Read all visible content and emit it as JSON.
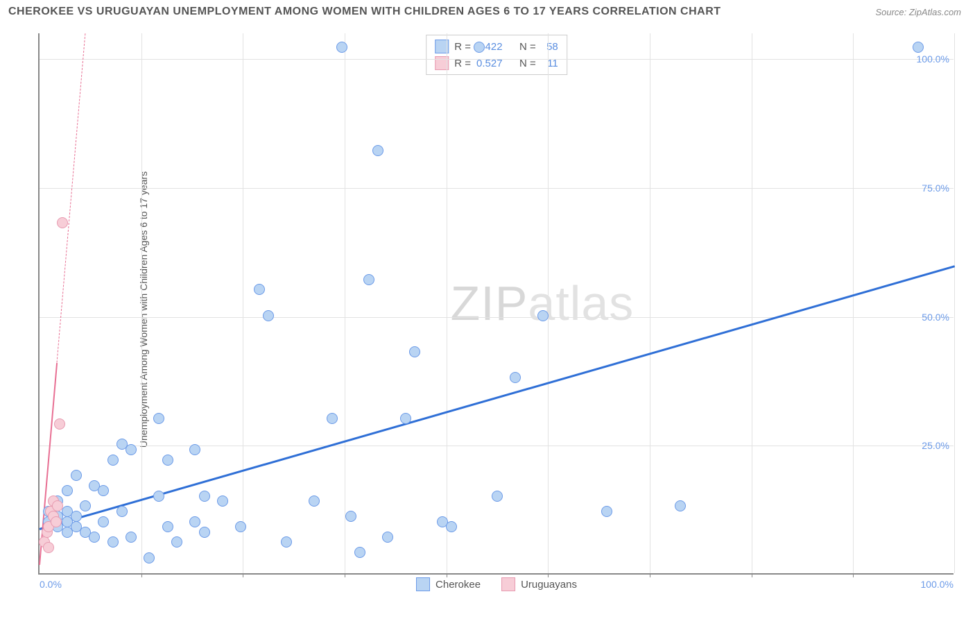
{
  "title": "CHEROKEE VS URUGUAYAN UNEMPLOYMENT AMONG WOMEN WITH CHILDREN AGES 6 TO 17 YEARS CORRELATION CHART",
  "source": "Source: ZipAtlas.com",
  "ylabel": "Unemployment Among Women with Children Ages 6 to 17 years",
  "watermark_bold": "ZIP",
  "watermark_thin": "atlas",
  "chart": {
    "type": "scatter",
    "xlim": [
      0,
      100
    ],
    "ylim": [
      0,
      105
    ],
    "xtick_labels": {
      "min": "0.0%",
      "max": "100.0%"
    },
    "ytick_labels": [
      "25.0%",
      "50.0%",
      "75.0%",
      "100.0%"
    ],
    "ytick_values": [
      25,
      50,
      75,
      100
    ],
    "minor_xticks_count": 8,
    "grid_color": "#e2e2e2",
    "axis_color": "#888888",
    "background": "#ffffff",
    "point_radius": 8,
    "series": [
      {
        "name": "Cherokee",
        "fill": "#b9d4f3",
        "stroke": "#6b9ae8",
        "trend_color": "#2f6fd6",
        "trend_width": 3,
        "trend_dash": "solid",
        "trend": {
          "x1": 0,
          "y1": 9,
          "x2": 100,
          "y2": 60
        },
        "R": "0.422",
        "N": "58",
        "points": [
          [
            1,
            10
          ],
          [
            1,
            12
          ],
          [
            2,
            9
          ],
          [
            2,
            11
          ],
          [
            2,
            14
          ],
          [
            3,
            8
          ],
          [
            3,
            10
          ],
          [
            3,
            12
          ],
          [
            3,
            16
          ],
          [
            4,
            9
          ],
          [
            4,
            11
          ],
          [
            4,
            19
          ],
          [
            5,
            8
          ],
          [
            5,
            13
          ],
          [
            6,
            7
          ],
          [
            6,
            17
          ],
          [
            7,
            10
          ],
          [
            7,
            16
          ],
          [
            8,
            6
          ],
          [
            8,
            22
          ],
          [
            9,
            12
          ],
          [
            9,
            25
          ],
          [
            10,
            7
          ],
          [
            10,
            24
          ],
          [
            12,
            3
          ],
          [
            13,
            15
          ],
          [
            13,
            30
          ],
          [
            14,
            9
          ],
          [
            14,
            22
          ],
          [
            15,
            6
          ],
          [
            17,
            10
          ],
          [
            17,
            24
          ],
          [
            18,
            8
          ],
          [
            18,
            15
          ],
          [
            20,
            14
          ],
          [
            22,
            9
          ],
          [
            24,
            55
          ],
          [
            25,
            50
          ],
          [
            27,
            6
          ],
          [
            30,
            14
          ],
          [
            32,
            30
          ],
          [
            33,
            102
          ],
          [
            34,
            11
          ],
          [
            35,
            4
          ],
          [
            36,
            57
          ],
          [
            37,
            82
          ],
          [
            38,
            7
          ],
          [
            40,
            30
          ],
          [
            41,
            43
          ],
          [
            44,
            10
          ],
          [
            45,
            9
          ],
          [
            48,
            102
          ],
          [
            50,
            15
          ],
          [
            52,
            38
          ],
          [
            55,
            50
          ],
          [
            62,
            12
          ],
          [
            70,
            13
          ],
          [
            96,
            102
          ]
        ]
      },
      {
        "name": "Uruguayans",
        "fill": "#f7cdd7",
        "stroke": "#e79ab0",
        "trend_color": "#e86f93",
        "trend_width": 2,
        "trend_dash": "solid_then_dashed",
        "trend": {
          "x1": 0,
          "y1": 2,
          "x2": 5,
          "y2": 105
        },
        "trend_solid_frac": 0.38,
        "R": "0.527",
        "N": "11",
        "points": [
          [
            0.5,
            6
          ],
          [
            0.8,
            8
          ],
          [
            1,
            5
          ],
          [
            1,
            9
          ],
          [
            1.2,
            12
          ],
          [
            1.5,
            11
          ],
          [
            1.5,
            14
          ],
          [
            1.8,
            10
          ],
          [
            2,
            13
          ],
          [
            2.2,
            29
          ],
          [
            2.5,
            68
          ]
        ]
      }
    ]
  },
  "stats_labels": {
    "R": "R =",
    "N": "N ="
  },
  "legend_items": [
    "Cherokee",
    "Uruguayans"
  ]
}
